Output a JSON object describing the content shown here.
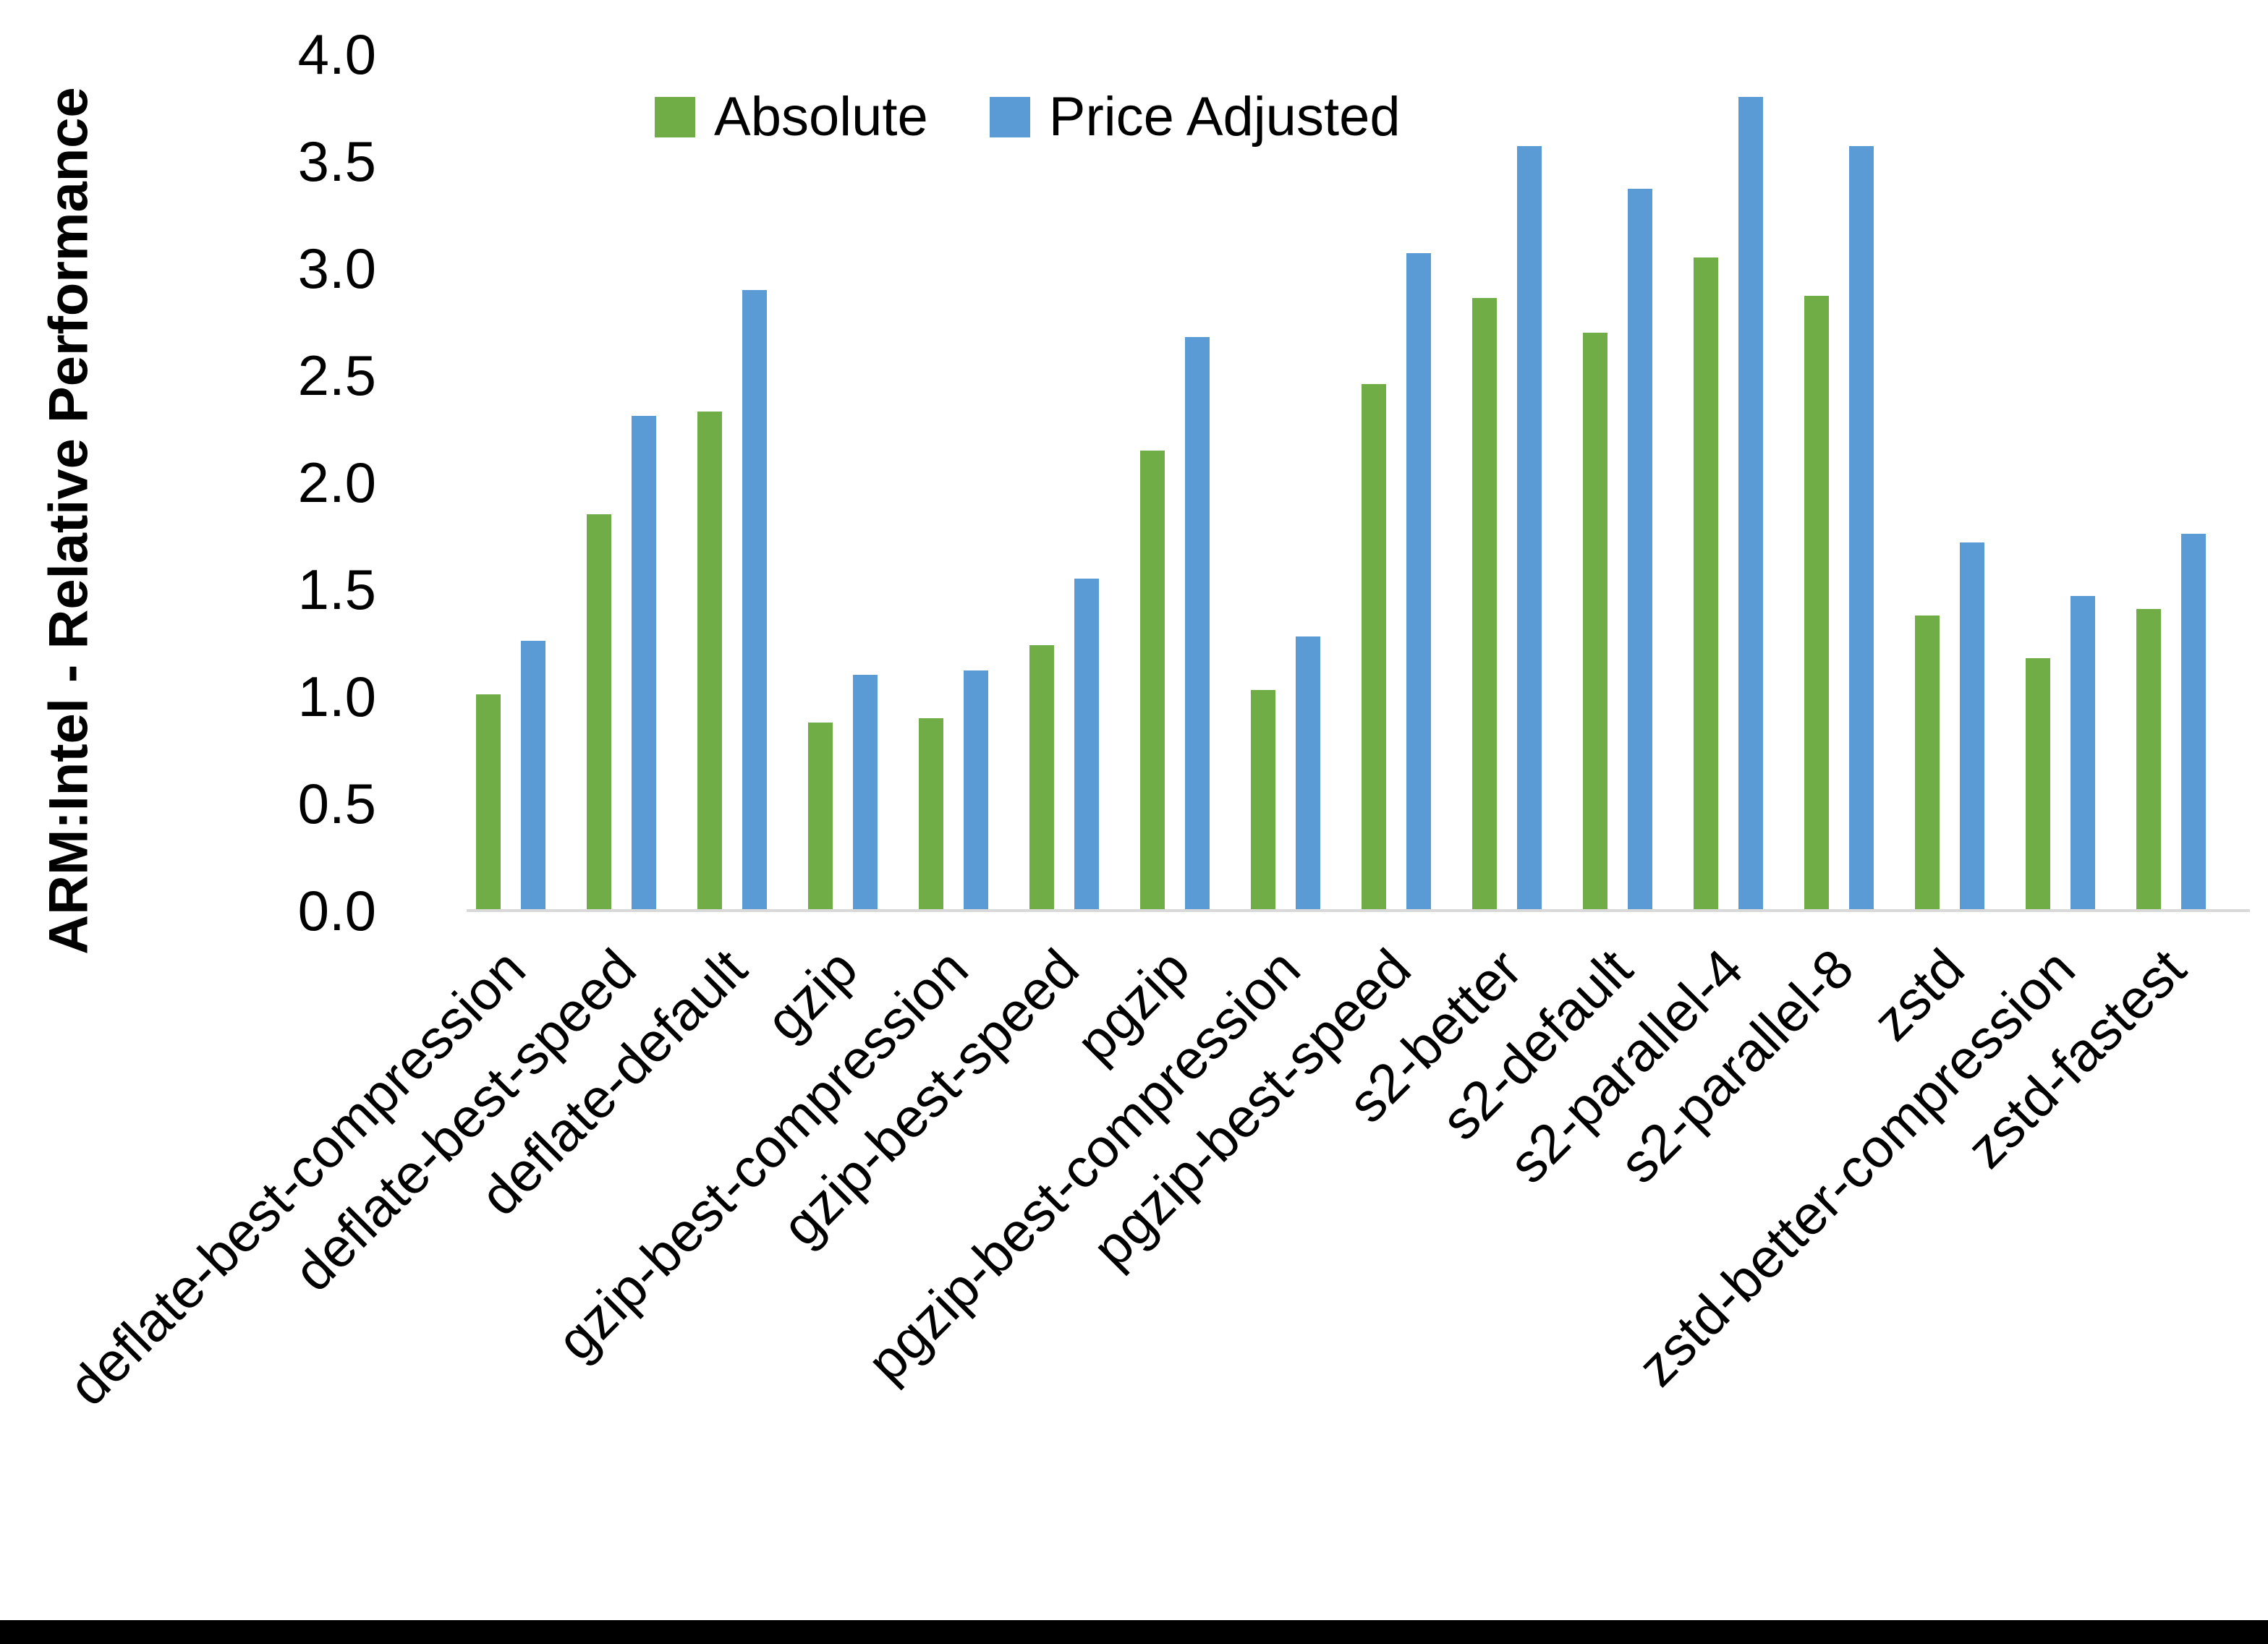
{
  "chart_data": {
    "type": "bar",
    "title": "",
    "ylabel": "ARM:Intel - Relative Performance",
    "xlabel": "",
    "ylim": [
      0.0,
      4.0
    ],
    "y_tick_step": 0.5,
    "y_ticks": [
      "4.0",
      "3.5",
      "3.0",
      "2.5",
      "2.0",
      "1.5",
      "1.0",
      "0.5",
      "0.0"
    ],
    "grid": false,
    "legend_position": "top-center",
    "x_label_rotation_deg": -45,
    "categories": [
      "deflate-best-compression",
      "deflate-best-speed",
      "deflate-default",
      "gzip",
      "gzip-best-compression",
      "gzip-best-speed",
      "pgzip",
      "pgzip-best-compression",
      "pgzip-best-speed",
      "s2-better",
      "s2-default",
      "s2-parallel-4",
      "s2-parallel-8",
      "zstd",
      "zstd-better-compression",
      "zstd-fastest"
    ],
    "series": [
      {
        "name": "Absolute",
        "color": "#70AD47",
        "values": [
          1.01,
          1.85,
          2.33,
          0.88,
          0.9,
          1.24,
          2.15,
          1.03,
          2.46,
          2.86,
          2.7,
          3.05,
          2.87,
          1.38,
          1.18,
          1.41
        ]
      },
      {
        "name": "Price Adjusted",
        "color": "#5B9BD5",
        "values": [
          1.26,
          2.31,
          2.9,
          1.1,
          1.12,
          1.55,
          2.68,
          1.28,
          3.07,
          3.57,
          3.37,
          3.8,
          3.57,
          1.72,
          1.47,
          1.76
        ]
      }
    ]
  },
  "colors": {
    "background": "#FFFFFF",
    "axis_line": "#D9D9D9",
    "text": "#000000",
    "bottom_border": "#000000",
    "series_absolute": "#70AD47",
    "series_price_adjusted": "#5B9BD5"
  }
}
